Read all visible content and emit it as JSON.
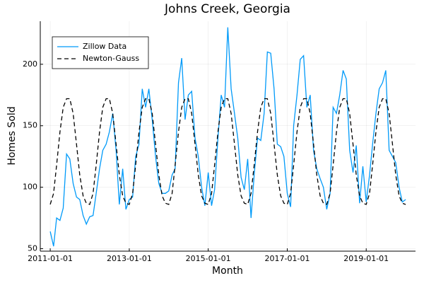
{
  "chart_data": {
    "type": "line",
    "title": "Johns Creek, Georgia",
    "x_label": "Month",
    "y_label": "Homes Sold",
    "x": [
      "2011-01-01",
      "2011-02-01",
      "2011-03-01",
      "2011-04-01",
      "2011-05-01",
      "2011-06-01",
      "2011-07-01",
      "2011-08-01",
      "2011-09-01",
      "2011-10-01",
      "2011-11-01",
      "2011-12-01",
      "2012-01-01",
      "2012-02-01",
      "2012-03-01",
      "2012-04-01",
      "2012-05-01",
      "2012-06-01",
      "2012-07-01",
      "2012-08-01",
      "2012-09-01",
      "2012-10-01",
      "2012-11-01",
      "2012-12-01",
      "2013-01-01",
      "2013-02-01",
      "2013-03-01",
      "2013-04-01",
      "2013-05-01",
      "2013-06-01",
      "2013-07-01",
      "2013-08-01",
      "2013-09-01",
      "2013-10-01",
      "2013-11-01",
      "2013-12-01",
      "2014-01-01",
      "2014-02-01",
      "2014-03-01",
      "2014-04-01",
      "2014-05-01",
      "2014-06-01",
      "2014-07-01",
      "2014-08-01",
      "2014-09-01",
      "2014-10-01",
      "2014-11-01",
      "2014-12-01",
      "2015-01-01",
      "2015-02-01",
      "2015-03-01",
      "2015-04-01",
      "2015-05-01",
      "2015-06-01",
      "2015-07-01",
      "2015-08-01",
      "2015-09-01",
      "2015-10-01",
      "2015-11-01",
      "2015-12-01",
      "2016-01-01",
      "2016-02-01",
      "2016-03-01",
      "2016-04-01",
      "2016-05-01",
      "2016-06-01",
      "2016-07-01",
      "2016-08-01",
      "2016-09-01",
      "2016-10-01",
      "2016-11-01",
      "2016-12-01",
      "2017-01-01",
      "2017-02-01",
      "2017-03-01",
      "2017-04-01",
      "2017-05-01",
      "2017-06-01",
      "2017-07-01",
      "2017-08-01",
      "2017-09-01",
      "2017-10-01",
      "2017-11-01",
      "2017-12-01",
      "2018-01-01",
      "2018-02-01",
      "2018-03-01",
      "2018-04-01",
      "2018-05-01",
      "2018-06-01",
      "2018-07-01",
      "2018-08-01",
      "2018-09-01",
      "2018-10-01",
      "2018-11-01",
      "2018-12-01",
      "2019-01-01",
      "2019-02-01",
      "2019-03-01",
      "2019-04-01",
      "2019-05-01",
      "2019-06-01",
      "2019-07-01",
      "2019-08-01",
      "2019-09-01",
      "2019-10-01",
      "2019-11-01",
      "2019-12-01",
      "2020-01-01"
    ],
    "series": [
      {
        "name": "Zillow Data",
        "color": "#009af9",
        "dashed": false,
        "values": [
          64,
          52,
          75,
          73,
          83,
          127,
          123,
          103,
          92,
          90,
          77,
          70,
          76,
          77,
          95,
          115,
          130,
          135,
          145,
          160,
          130,
          86,
          115,
          82,
          90,
          92,
          125,
          135,
          180,
          165,
          180,
          155,
          125,
          103,
          95,
          95,
          97,
          110,
          115,
          185,
          205,
          155,
          175,
          178,
          140,
          125,
          100,
          85,
          112,
          85,
          98,
          140,
          175,
          165,
          230,
          180,
          160,
          140,
          108,
          98,
          123,
          75,
          110,
          140,
          138,
          160,
          210,
          209,
          180,
          135,
          133,
          125,
          95,
          84,
          150,
          175,
          204,
          207,
          165,
          175,
          130,
          115,
          107,
          100,
          82,
          95,
          165,
          160,
          175,
          195,
          188,
          130,
          112,
          134,
          87,
          117,
          88,
          110,
          135,
          160,
          180,
          185,
          195,
          130,
          125,
          120,
          100,
          88,
          90
        ]
      },
      {
        "name": "Newton-Gauss",
        "color": "#000000",
        "dashed": true,
        "values": [
          86,
          95,
          118,
          145,
          165,
          172,
          172,
          160,
          135,
          110,
          93,
          87,
          86,
          95,
          118,
          145,
          165,
          172,
          172,
          160,
          135,
          110,
          93,
          87,
          86,
          95,
          118,
          145,
          165,
          172,
          172,
          160,
          135,
          110,
          93,
          87,
          86,
          95,
          118,
          145,
          165,
          172,
          172,
          160,
          135,
          110,
          93,
          87,
          86,
          95,
          118,
          145,
          165,
          172,
          172,
          160,
          135,
          110,
          93,
          87,
          86,
          95,
          118,
          145,
          165,
          172,
          172,
          160,
          135,
          110,
          93,
          87,
          86,
          95,
          118,
          145,
          165,
          172,
          172,
          160,
          135,
          110,
          93,
          87,
          86,
          95,
          118,
          145,
          165,
          172,
          172,
          160,
          135,
          110,
          93,
          87,
          86,
          95,
          118,
          145,
          165,
          172,
          172,
          160,
          135,
          110,
          93,
          87,
          86
        ]
      }
    ],
    "xlim": [
      "2010-10-01",
      "2020-04-01"
    ],
    "xticks": [
      "2011-01-01",
      "2013-01-01",
      "2015-01-01",
      "2017-01-01",
      "2019-01-01"
    ],
    "ylim": [
      48,
      235
    ],
    "yticks": [
      50,
      100,
      150,
      200
    ],
    "grid": true,
    "legend": "top-left"
  }
}
